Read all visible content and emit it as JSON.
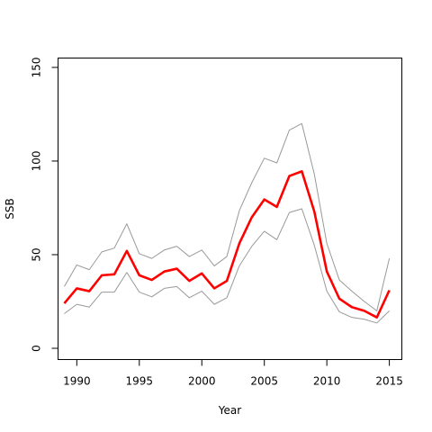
{
  "chart_data": {
    "type": "line",
    "title": "",
    "xlabel": "Year",
    "ylabel": "SSB",
    "xlim": [
      1988.5,
      2016.0
    ],
    "ylim": [
      -6,
      155
    ],
    "xticks": [
      1990,
      1995,
      2000,
      2005,
      2010,
      2015
    ],
    "yticks": [
      0,
      50,
      100,
      150
    ],
    "x_tick_labels": [
      "1990",
      "1995",
      "2000",
      "2005",
      "2010",
      "2015"
    ],
    "y_tick_labels": [
      "0",
      "50",
      "100",
      "150"
    ],
    "grid": false,
    "legend": "none",
    "x": [
      1989,
      1990,
      1991,
      1992,
      1993,
      1994,
      1995,
      1996,
      1997,
      1998,
      1999,
      2000,
      2001,
      2002,
      2003,
      2004,
      2005,
      2006,
      2007,
      2008,
      2009,
      2010,
      2011,
      2012,
      2013,
      2014,
      2015
    ],
    "series": [
      {
        "color": "#999999",
        "width": "thin",
        "values": [
          33,
          44.5,
          42,
          51.5,
          53.5,
          66.5,
          50.5,
          48,
          52.5,
          54.5,
          49,
          52.5,
          44,
          49,
          73.5,
          88.5,
          101.5,
          99,
          116.5,
          120,
          93,
          56,
          36.5,
          30.5,
          25,
          20,
          48
        ]
      },
      {
        "color": "#ff0000",
        "width": "thick",
        "values": [
          24,
          32,
          30.5,
          39,
          39.5,
          52,
          39,
          36.5,
          41,
          42.5,
          36,
          40,
          32,
          36,
          56,
          70,
          79.5,
          75.5,
          92,
          94.5,
          73,
          41,
          26.5,
          22,
          20,
          16.5,
          31
        ]
      },
      {
        "color": "#999999",
        "width": "thin",
        "values": [
          18.5,
          23.5,
          22,
          30,
          30,
          40.5,
          30,
          27.5,
          32,
          33,
          27,
          30.5,
          23.5,
          27,
          44,
          54.5,
          62.5,
          58,
          72.5,
          74.5,
          55,
          30.5,
          19.5,
          16.5,
          15.5,
          13.5,
          20
        ]
      }
    ]
  }
}
